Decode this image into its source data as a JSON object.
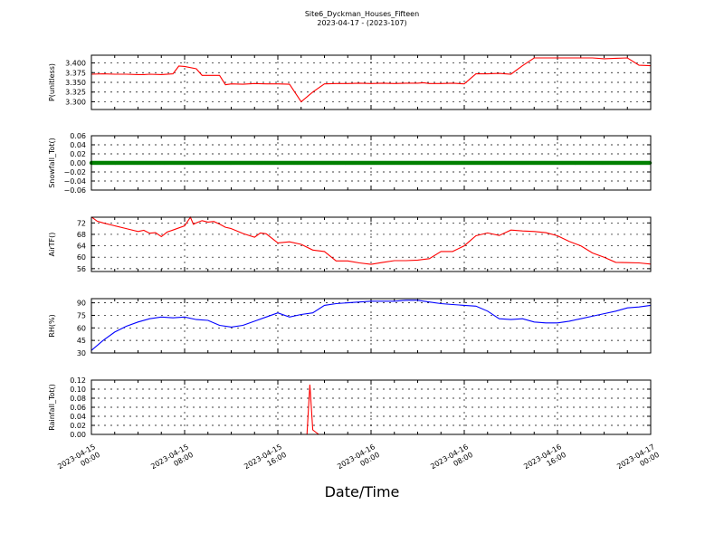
{
  "figure": {
    "title": "Site6_Dyckman_Houses_Fifteen",
    "subtitle": "2023-04-17 - (2023-107)",
    "xlabel": "Date/Time"
  },
  "chart_data": [
    {
      "type": "line",
      "ylabel": "P(unitless)",
      "color": "#ff0000",
      "ylim": [
        3.28,
        3.42
      ],
      "yticks": [
        3.3,
        3.325,
        3.35,
        3.375,
        3.4
      ],
      "ytick_labels": [
        "3.300",
        "3.325",
        "3.350",
        "3.375",
        "3.400"
      ],
      "grid": true,
      "series": [
        {
          "x": [
            0,
            2,
            4,
            6,
            8,
            9,
            10,
            12,
            14,
            15,
            16,
            18,
            19,
            20,
            22,
            23,
            24,
            26,
            28,
            30,
            32,
            34,
            36,
            38,
            40,
            42,
            44,
            46,
            48,
            50,
            52,
            54,
            56,
            57,
            58,
            60,
            62,
            64,
            66,
            68,
            70,
            72,
            74,
            76,
            78,
            80,
            82,
            84,
            86,
            88,
            90,
            92,
            94,
            96
          ],
          "values": [
            3.371,
            3.372,
            3.371,
            3.371,
            3.37,
            3.37,
            3.371,
            3.37,
            3.372,
            3.392,
            3.391,
            3.385,
            3.368,
            3.368,
            3.368,
            3.344,
            3.346,
            3.345,
            3.347,
            3.346,
            3.346,
            3.345,
            3.3,
            3.325,
            3.346,
            3.347,
            3.347,
            3.348,
            3.347,
            3.348,
            3.347,
            3.348,
            3.348,
            3.349,
            3.347,
            3.347,
            3.348,
            3.346,
            3.372,
            3.372,
            3.373,
            3.371,
            3.393,
            3.413,
            3.413,
            3.413,
            3.413,
            3.413,
            3.413,
            3.411,
            3.412,
            3.413,
            3.394,
            3.393
          ]
        }
      ]
    },
    {
      "type": "scatter",
      "ylabel": "Snowfall_Tot()",
      "color": "#008000",
      "ylim": [
        -0.06,
        0.06
      ],
      "yticks": [
        -0.06,
        -0.04,
        -0.02,
        0.0,
        0.02,
        0.04,
        0.06
      ],
      "ytick_labels": [
        "−0.06",
        "−0.04",
        "−0.02",
        "0.00",
        "0.02",
        "0.04",
        "0.06"
      ],
      "grid": true,
      "series": [
        {
          "x_range": [
            0,
            96
          ],
          "value": 0.0
        }
      ]
    },
    {
      "type": "line",
      "ylabel": "AirTF()",
      "color": "#ff0000",
      "ylim": [
        55,
        74
      ],
      "yticks": [
        56,
        60,
        64,
        68,
        72
      ],
      "ytick_labels": [
        "56",
        "60",
        "64",
        "68",
        "72"
      ],
      "grid": true,
      "series": [
        {
          "x": [
            0,
            1,
            2,
            4,
            6,
            8,
            9,
            10,
            11,
            12,
            13,
            14,
            16,
            17,
            17.5,
            18,
            19,
            20,
            21,
            22,
            23,
            24,
            26,
            28,
            29,
            30,
            32,
            34,
            36,
            38,
            40,
            42,
            44,
            46,
            48,
            50,
            52,
            54,
            56,
            58,
            60,
            62,
            64,
            66,
            68,
            70,
            72,
            74,
            76,
            78,
            80,
            82,
            84,
            86,
            88,
            90,
            92,
            94,
            96
          ],
          "values": [
            74.1,
            72.6,
            72.0,
            71.0,
            70.0,
            69.0,
            69.4,
            68.4,
            68.6,
            67.2,
            68.8,
            69.5,
            71.0,
            74.0,
            71.5,
            72.0,
            72.8,
            72.3,
            72.5,
            71.6,
            70.5,
            70.0,
            68.3,
            67.0,
            68.5,
            68.2,
            65.0,
            65.4,
            64.5,
            62.5,
            62.0,
            58.7,
            58.7,
            58.0,
            57.5,
            58.2,
            58.8,
            58.8,
            59.0,
            59.5,
            62.0,
            62.0,
            64.0,
            67.5,
            68.5,
            67.6,
            69.5,
            69.2,
            69.0,
            68.6,
            67.5,
            65.5,
            64.0,
            61.5,
            60.0,
            58.2,
            58.1,
            58.0,
            57.6
          ]
        }
      ]
    },
    {
      "type": "line",
      "ylabel": "RH(%)",
      "color": "#0000ff",
      "ylim": [
        30,
        95
      ],
      "yticks": [
        30,
        45,
        60,
        75,
        90
      ],
      "ytick_labels": [
        "30",
        "45",
        "60",
        "75",
        "90"
      ],
      "grid": true,
      "series": [
        {
          "x": [
            0,
            2,
            4,
            6,
            8,
            10,
            12,
            14,
            16,
            18,
            20,
            22,
            24,
            26,
            28,
            30,
            32,
            34,
            36,
            38,
            40,
            42,
            44,
            46,
            48,
            50,
            52,
            54,
            56,
            58,
            60,
            62,
            64,
            66,
            68,
            70,
            72,
            74,
            76,
            78,
            80,
            82,
            84,
            86,
            88,
            90,
            92,
            94,
            96
          ],
          "values": [
            33,
            45,
            55,
            62,
            67,
            71,
            73,
            72,
            73,
            70,
            69,
            63,
            61,
            63,
            68,
            73,
            78,
            73,
            76,
            78,
            87,
            89,
            90,
            91,
            92,
            92,
            92,
            93,
            93,
            91,
            89,
            88,
            87,
            86,
            80,
            71,
            70,
            71,
            67,
            66,
            66,
            68,
            71,
            74,
            77,
            80,
            84,
            85,
            87
          ]
        }
      ]
    },
    {
      "type": "line",
      "ylabel": "Rainfall_Tot()",
      "color": "#ff0000",
      "ylim": [
        0.0,
        0.12
      ],
      "yticks": [
        0.0,
        0.02,
        0.04,
        0.06,
        0.08,
        0.1,
        0.12
      ],
      "ytick_labels": [
        "0.00",
        "0.02",
        "0.04",
        "0.06",
        "0.08",
        "0.10",
        "0.12"
      ],
      "grid": true,
      "series": [
        {
          "x": [
            0,
            37,
            37.5,
            38,
            38.5,
            39,
            96
          ],
          "values": [
            0,
            0,
            0.11,
            0.01,
            0.005,
            0,
            0
          ]
        }
      ]
    }
  ],
  "xaxis": {
    "range": [
      0,
      96
    ],
    "ticks": [
      0,
      16,
      32,
      48,
      64,
      80,
      96
    ],
    "tick_labels": [
      [
        "2023-04-15",
        "00:00"
      ],
      [
        "2023-04-15",
        "08:00"
      ],
      [
        "2023-04-15",
        "16:00"
      ],
      [
        "2023-04-16",
        "00:00"
      ],
      [
        "2023-04-16",
        "08:00"
      ],
      [
        "2023-04-16",
        "16:00"
      ],
      [
        "2023-04-17",
        "00:00"
      ]
    ]
  }
}
